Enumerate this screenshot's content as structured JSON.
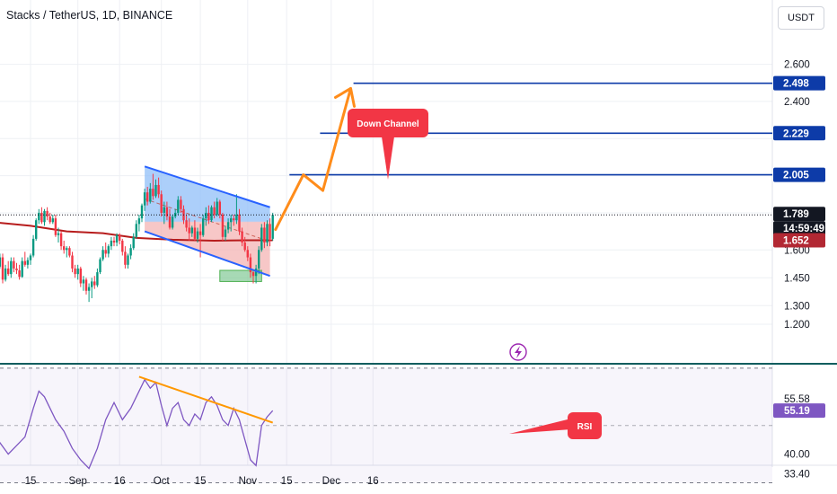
{
  "header": {
    "title": "Stacks / TetherUS, 1D, BINANCE",
    "currency": "USDT"
  },
  "price_axis": {
    "ticks": [
      "2.600",
      "2.400",
      "1.600",
      "1.450",
      "1.300",
      "1.200"
    ],
    "tags": [
      {
        "label": "2.498",
        "kind": "target"
      },
      {
        "label": "2.229",
        "kind": "target"
      },
      {
        "label": "2.005",
        "kind": "target"
      },
      {
        "label": "1.789",
        "kind": "last-price"
      },
      {
        "label": "14:59:49",
        "kind": "countdown"
      },
      {
        "label": "1.652",
        "kind": "moving-average"
      }
    ]
  },
  "rsi_axis": {
    "ticks": [
      "55.58",
      "40.00",
      "33.40"
    ],
    "tag": "55.19"
  },
  "time_axis": {
    "ticks": [
      "15",
      "Sep",
      "16",
      "Oct",
      "15",
      "Nov",
      "15",
      "Dec",
      "16"
    ]
  },
  "annotations": {
    "channel_callout": "Down Channel",
    "rsi_callout": "RSI"
  },
  "colors": {
    "bull": "#089981",
    "bear": "#f23645",
    "moving_average": "#b71c1c",
    "channel_outline": "#2962ff",
    "channel_fill_top": "#90bff9",
    "channel_fill_bottom": "#f4b4b4",
    "support_zone": "#81c995",
    "projection": "#ff8c1a",
    "target_line": "#0d3ba8",
    "rsi_line": "#7e57c2",
    "rsi_trendline": "#ff9800",
    "callout": "#f23645",
    "last_price_tag": "#131722",
    "ma_tag": "#b22833",
    "separator": "#0d5d5e",
    "currency_border": "#d1d4dc"
  },
  "icons": {
    "bolt": "lightning-bolt-icon"
  },
  "chart_data": {
    "type": "candlestick",
    "timeframe": "1D",
    "ylim": [
      1.15,
      2.8
    ],
    "price_levels": {
      "targets": [
        2.498,
        2.229,
        2.005
      ],
      "last_price": 1.789,
      "moving_average": 1.652
    },
    "candles": [
      [
        "2024-08-01",
        1.56,
        1.6,
        1.52,
        1.545
      ],
      [
        "2024-08-02",
        1.545,
        1.565,
        1.45,
        1.47
      ],
      [
        "2024-08-03",
        1.47,
        1.52,
        1.44,
        1.51
      ],
      [
        "2024-08-04",
        1.51,
        1.58,
        1.5,
        1.56
      ],
      [
        "2024-08-05",
        1.56,
        1.58,
        1.42,
        1.44
      ],
      [
        "2024-08-06",
        1.44,
        1.52,
        1.43,
        1.5
      ],
      [
        "2024-08-07",
        1.5,
        1.54,
        1.46,
        1.47
      ],
      [
        "2024-08-08",
        1.47,
        1.56,
        1.45,
        1.54
      ],
      [
        "2024-08-09",
        1.54,
        1.56,
        1.48,
        1.5
      ],
      [
        "2024-08-10",
        1.5,
        1.53,
        1.47,
        1.49
      ],
      [
        "2024-08-11",
        1.49,
        1.52,
        1.44,
        1.455
      ],
      [
        "2024-08-12",
        1.455,
        1.56,
        1.45,
        1.54
      ],
      [
        "2024-08-13",
        1.54,
        1.59,
        1.51,
        1.52
      ],
      [
        "2024-08-14",
        1.52,
        1.56,
        1.5,
        1.545
      ],
      [
        "2024-08-15",
        1.545,
        1.58,
        1.52,
        1.57
      ],
      [
        "2024-08-16",
        1.57,
        1.68,
        1.56,
        1.66
      ],
      [
        "2024-08-17",
        1.66,
        1.77,
        1.65,
        1.76
      ],
      [
        "2024-08-18",
        1.76,
        1.82,
        1.74,
        1.8
      ],
      [
        "2024-08-19",
        1.8,
        1.83,
        1.74,
        1.75
      ],
      [
        "2024-08-20",
        1.75,
        1.82,
        1.73,
        1.81
      ],
      [
        "2024-08-21",
        1.81,
        1.83,
        1.76,
        1.78
      ],
      [
        "2024-08-22",
        1.78,
        1.8,
        1.74,
        1.75
      ],
      [
        "2024-08-23",
        1.75,
        1.79,
        1.74,
        1.77
      ],
      [
        "2024-08-24",
        1.77,
        1.79,
        1.67,
        1.68
      ],
      [
        "2024-08-25",
        1.68,
        1.72,
        1.64,
        1.69
      ],
      [
        "2024-08-26",
        1.69,
        1.7,
        1.6,
        1.62
      ],
      [
        "2024-08-27",
        1.62,
        1.65,
        1.58,
        1.6
      ],
      [
        "2024-08-28",
        1.6,
        1.62,
        1.56,
        1.61
      ],
      [
        "2024-08-29",
        1.61,
        1.62,
        1.56,
        1.57
      ],
      [
        "2024-08-30",
        1.57,
        1.59,
        1.48,
        1.5
      ],
      [
        "2024-08-31",
        1.5,
        1.52,
        1.45,
        1.47
      ],
      [
        "2024-09-01",
        1.47,
        1.52,
        1.44,
        1.5
      ],
      [
        "2024-09-02",
        1.5,
        1.51,
        1.4,
        1.42
      ],
      [
        "2024-09-03",
        1.42,
        1.46,
        1.38,
        1.44
      ],
      [
        "2024-09-04",
        1.44,
        1.45,
        1.36,
        1.38
      ],
      [
        "2024-09-05",
        1.38,
        1.42,
        1.32,
        1.4
      ],
      [
        "2024-09-06",
        1.4,
        1.45,
        1.34,
        1.43
      ],
      [
        "2024-09-07",
        1.43,
        1.46,
        1.39,
        1.41
      ],
      [
        "2024-09-08",
        1.41,
        1.5,
        1.4,
        1.48
      ],
      [
        "2024-09-09",
        1.48,
        1.56,
        1.47,
        1.55
      ],
      [
        "2024-09-10",
        1.55,
        1.62,
        1.54,
        1.6
      ],
      [
        "2024-09-11",
        1.6,
        1.64,
        1.56,
        1.58
      ],
      [
        "2024-09-12",
        1.58,
        1.63,
        1.56,
        1.62
      ],
      [
        "2024-09-13",
        1.62,
        1.67,
        1.6,
        1.65
      ],
      [
        "2024-09-14",
        1.65,
        1.67,
        1.62,
        1.64
      ],
      [
        "2024-09-15",
        1.64,
        1.69,
        1.62,
        1.68
      ],
      [
        "2024-09-16",
        1.68,
        1.69,
        1.63,
        1.65
      ],
      [
        "2024-09-17",
        1.65,
        1.66,
        1.57,
        1.59
      ],
      [
        "2024-09-18",
        1.59,
        1.62,
        1.5,
        1.52
      ],
      [
        "2024-09-19",
        1.52,
        1.58,
        1.5,
        1.57
      ],
      [
        "2024-09-20",
        1.57,
        1.63,
        1.55,
        1.61
      ],
      [
        "2024-09-21",
        1.61,
        1.69,
        1.6,
        1.67
      ],
      [
        "2024-09-22",
        1.67,
        1.76,
        1.66,
        1.74
      ],
      [
        "2024-09-23",
        1.74,
        1.79,
        1.7,
        1.77
      ],
      [
        "2024-09-24",
        1.77,
        1.85,
        1.75,
        1.84
      ],
      [
        "2024-09-25",
        1.84,
        1.93,
        1.81,
        1.91
      ],
      [
        "2024-09-26",
        1.91,
        1.94,
        1.84,
        1.86
      ],
      [
        "2024-09-27",
        1.86,
        1.96,
        1.85,
        1.93
      ],
      [
        "2024-09-28",
        1.93,
        2.01,
        1.87,
        1.89
      ],
      [
        "2024-09-29",
        1.89,
        1.98,
        1.88,
        1.95
      ],
      [
        "2024-09-30",
        1.95,
        1.99,
        1.88,
        1.9
      ],
      [
        "2024-10-01",
        1.9,
        1.92,
        1.78,
        1.8
      ],
      [
        "2024-10-02",
        1.8,
        1.86,
        1.74,
        1.83
      ],
      [
        "2024-10-03",
        1.83,
        1.86,
        1.76,
        1.78
      ],
      [
        "2024-10-04",
        1.78,
        1.82,
        1.71,
        1.72
      ],
      [
        "2024-10-05",
        1.72,
        1.79,
        1.71,
        1.78
      ],
      [
        "2024-10-06",
        1.78,
        1.82,
        1.77,
        1.8
      ],
      [
        "2024-10-07",
        1.8,
        1.89,
        1.79,
        1.87
      ],
      [
        "2024-10-08",
        1.87,
        1.89,
        1.8,
        1.82
      ],
      [
        "2024-10-09",
        1.82,
        1.84,
        1.74,
        1.76
      ],
      [
        "2024-10-10",
        1.76,
        1.79,
        1.7,
        1.72
      ],
      [
        "2024-10-11",
        1.72,
        1.77,
        1.65,
        1.69
      ],
      [
        "2024-10-12",
        1.69,
        1.73,
        1.67,
        1.72
      ],
      [
        "2024-10-13",
        1.72,
        1.76,
        1.65,
        1.66
      ],
      [
        "2024-10-14",
        1.66,
        1.72,
        1.64,
        1.7
      ],
      [
        "2024-10-15",
        1.7,
        1.74,
        1.56,
        1.68
      ],
      [
        "2024-10-16",
        1.68,
        1.79,
        1.67,
        1.77
      ],
      [
        "2024-10-17",
        1.77,
        1.83,
        1.73,
        1.8
      ],
      [
        "2024-10-18",
        1.8,
        1.84,
        1.74,
        1.76
      ],
      [
        "2024-10-19",
        1.76,
        1.84,
        1.75,
        1.83
      ],
      [
        "2024-10-20",
        1.83,
        1.86,
        1.77,
        1.79
      ],
      [
        "2024-10-21",
        1.79,
        1.88,
        1.78,
        1.86
      ],
      [
        "2024-10-22",
        1.86,
        1.87,
        1.77,
        1.79
      ],
      [
        "2024-10-23",
        1.79,
        1.8,
        1.65,
        1.67
      ],
      [
        "2024-10-24",
        1.67,
        1.73,
        1.65,
        1.71
      ],
      [
        "2024-10-25",
        1.71,
        1.77,
        1.69,
        1.75
      ],
      [
        "2024-10-26",
        1.75,
        1.79,
        1.7,
        1.77
      ],
      [
        "2024-10-27",
        1.77,
        1.79,
        1.73,
        1.76
      ],
      [
        "2024-10-28",
        1.76,
        1.9,
        1.74,
        1.79
      ],
      [
        "2024-10-29",
        1.79,
        1.82,
        1.68,
        1.7
      ],
      [
        "2024-10-30",
        1.7,
        1.72,
        1.62,
        1.64
      ],
      [
        "2024-10-31",
        1.64,
        1.67,
        1.59,
        1.6
      ],
      [
        "2024-11-01",
        1.6,
        1.62,
        1.54,
        1.56
      ],
      [
        "2024-11-02",
        1.56,
        1.58,
        1.45,
        1.48
      ],
      [
        "2024-11-03",
        1.48,
        1.49,
        1.42,
        1.46
      ],
      [
        "2024-11-04",
        1.46,
        1.52,
        1.42,
        1.5
      ],
      [
        "2024-11-05",
        1.5,
        1.62,
        1.47,
        1.6
      ],
      [
        "2024-11-06",
        1.6,
        1.74,
        1.59,
        1.72
      ],
      [
        "2024-11-07",
        1.72,
        1.75,
        1.61,
        1.64
      ],
      [
        "2024-11-08",
        1.64,
        1.76,
        1.62,
        1.74
      ],
      [
        "2024-11-09",
        1.74,
        1.77,
        1.62,
        1.66
      ],
      [
        "2024-11-10",
        1.66,
        1.8,
        1.65,
        1.789
      ]
    ],
    "moving_average_series": [
      [
        "2024-08-01",
        1.75
      ],
      [
        "2024-08-15",
        1.73
      ],
      [
        "2024-08-28",
        1.7
      ],
      [
        "2024-09-10",
        1.69
      ],
      [
        "2024-09-22",
        1.665
      ],
      [
        "2024-10-05",
        1.655
      ],
      [
        "2024-10-20",
        1.65
      ],
      [
        "2024-11-01",
        1.652
      ],
      [
        "2024-11-10",
        1.652
      ]
    ],
    "down_channel": {
      "upper": [
        [
          "2024-09-25",
          2.05
        ],
        [
          "2024-11-09",
          1.83
        ]
      ],
      "lower": [
        [
          "2024-09-25",
          1.7
        ],
        [
          "2024-11-09",
          1.46
        ]
      ]
    },
    "support_zone": {
      "x": [
        "2024-10-22",
        "2024-11-06"
      ],
      "y": [
        1.43,
        1.49
      ]
    },
    "projection": [
      [
        "2024-11-11",
        1.71
      ],
      [
        "2024-11-21",
        2.005
      ],
      [
        "2024-11-28",
        1.92
      ],
      [
        "2024-12-08",
        2.47
      ]
    ],
    "rsi": {
      "ylim": [
        25,
        75
      ],
      "levels": [
        55.58,
        40.0,
        33.4
      ],
      "current": 55.19,
      "trendline": [
        [
          "2024-09-23",
          67
        ],
        [
          "2024-11-10",
          51
        ]
      ],
      "values": [
        [
          "2024-08-01",
          40
        ],
        [
          "2024-08-04",
          44
        ],
        [
          "2024-08-07",
          40
        ],
        [
          "2024-08-10",
          43
        ],
        [
          "2024-08-13",
          46
        ],
        [
          "2024-08-16",
          56
        ],
        [
          "2024-08-18",
          62
        ],
        [
          "2024-08-20",
          60
        ],
        [
          "2024-08-22",
          56
        ],
        [
          "2024-08-24",
          52
        ],
        [
          "2024-08-27",
          48
        ],
        [
          "2024-08-30",
          42
        ],
        [
          "2024-09-02",
          38
        ],
        [
          "2024-09-05",
          35
        ],
        [
          "2024-09-08",
          42
        ],
        [
          "2024-09-11",
          52
        ],
        [
          "2024-09-14",
          58
        ],
        [
          "2024-09-17",
          52
        ],
        [
          "2024-09-20",
          56
        ],
        [
          "2024-09-23",
          62
        ],
        [
          "2024-09-25",
          66
        ],
        [
          "2024-09-27",
          63
        ],
        [
          "2024-09-29",
          65
        ],
        [
          "2024-10-01",
          57
        ],
        [
          "2024-10-03",
          50
        ],
        [
          "2024-10-05",
          56
        ],
        [
          "2024-10-07",
          58
        ],
        [
          "2024-10-09",
          52
        ],
        [
          "2024-10-11",
          50
        ],
        [
          "2024-10-13",
          54
        ],
        [
          "2024-10-15",
          52
        ],
        [
          "2024-10-17",
          58
        ],
        [
          "2024-10-19",
          60
        ],
        [
          "2024-10-21",
          57
        ],
        [
          "2024-10-23",
          52
        ],
        [
          "2024-10-25",
          50
        ],
        [
          "2024-10-27",
          56
        ],
        [
          "2024-10-29",
          52
        ],
        [
          "2024-10-31",
          45
        ],
        [
          "2024-11-02",
          38
        ],
        [
          "2024-11-04",
          36
        ],
        [
          "2024-11-06",
          50
        ],
        [
          "2024-11-08",
          53
        ],
        [
          "2024-11-10",
          55.19
        ]
      ]
    }
  }
}
